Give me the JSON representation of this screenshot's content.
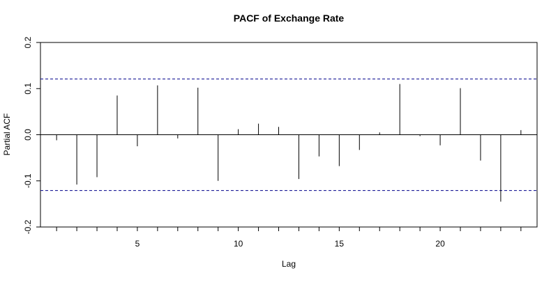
{
  "chart_data": {
    "type": "bar",
    "title": "PACF of Exchange Rate",
    "xlabel": "Lag",
    "ylabel": "Partial ACF",
    "xlim": [
      0.2,
      24.8
    ],
    "ylim": [
      -0.2,
      0.2
    ],
    "x_ticks": [
      5,
      10,
      15,
      20
    ],
    "y_ticks": [
      -0.2,
      -0.1,
      0.0,
      0.1,
      0.2
    ],
    "y_tick_labels": [
      "-0.2",
      "-0.1",
      "0.0",
      "0.1",
      "0.2"
    ],
    "confidence_bound": 0.121,
    "confidence_color": "#00008b",
    "lags": [
      1,
      2,
      3,
      4,
      5,
      6,
      7,
      8,
      9,
      10,
      11,
      12,
      13,
      14,
      15,
      16,
      17,
      18,
      19,
      20,
      21,
      22,
      23,
      24
    ],
    "values": [
      -0.012,
      -0.108,
      -0.092,
      0.085,
      -0.025,
      0.107,
      -0.008,
      0.102,
      -0.1,
      0.012,
      0.024,
      0.017,
      -0.096,
      -0.047,
      -0.068,
      -0.033,
      0.005,
      0.11,
      -0.003,
      -0.023,
      0.101,
      -0.056,
      -0.145,
      0.01
    ],
    "grid": false,
    "legend": "none"
  }
}
